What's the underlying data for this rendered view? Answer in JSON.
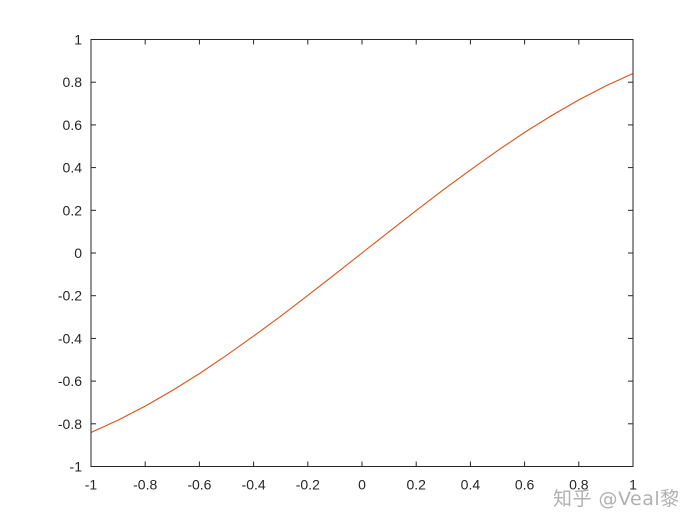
{
  "chart_data": {
    "type": "line",
    "title": "",
    "xlabel": "",
    "ylabel": "",
    "xlim": [
      -1,
      1
    ],
    "ylim": [
      -1,
      1
    ],
    "xticks": [
      -1,
      -0.8,
      -0.6,
      -0.4,
      -0.2,
      0,
      0.2,
      0.4,
      0.6,
      0.8,
      1
    ],
    "yticks": [
      -1,
      -0.8,
      -0.6,
      -0.4,
      -0.2,
      0,
      0.2,
      0.4,
      0.6,
      0.8,
      1
    ],
    "xtick_labels": [
      "-1",
      "-0.8",
      "-0.6",
      "-0.4",
      "-0.2",
      "0",
      "0.2",
      "0.4",
      "0.6",
      "0.8",
      "1"
    ],
    "ytick_labels": [
      "-1",
      "-0.8",
      "-0.6",
      "-0.4",
      "-0.2",
      "0",
      "0.2",
      "0.4",
      "0.6",
      "0.8",
      "1"
    ],
    "grid": false,
    "box": true,
    "series": [
      {
        "color": "#D95319",
        "x": [
          -1,
          -0.9,
          -0.8,
          -0.7,
          -0.6,
          -0.5,
          -0.4,
          -0.3,
          -0.2,
          -0.1,
          0,
          0.1,
          0.2,
          0.3,
          0.4,
          0.5,
          0.6,
          0.7,
          0.8,
          0.9,
          1
        ],
        "y": [
          -0.841,
          -0.783,
          -0.717,
          -0.644,
          -0.565,
          -0.479,
          -0.389,
          -0.296,
          -0.199,
          -0.1,
          0,
          0.1,
          0.199,
          0.296,
          0.389,
          0.479,
          0.565,
          0.644,
          0.717,
          0.783,
          0.841
        ]
      }
    ]
  },
  "watermark": "知乎 @Veal黎"
}
